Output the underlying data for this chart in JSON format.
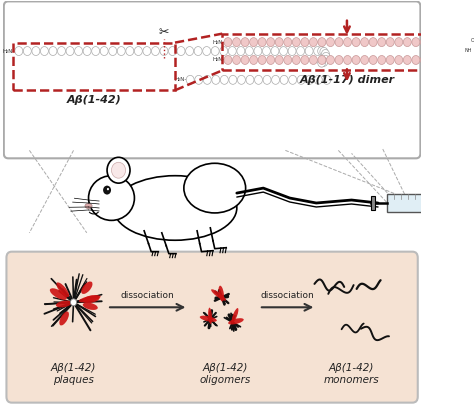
{
  "bg_color": "#ffffff",
  "top_box_bg": "#ffffff",
  "bottom_box_bg": "#f5e2d3",
  "red_color": "#b22222",
  "gray_circle_face": "#ffffff",
  "gray_circle_edge": "#aaaaaa",
  "pink_circle_face": "#f0c8c8",
  "pink_circle_edge": "#c89898",
  "label_ab42": "Aβ(1-42)",
  "label_ab17": "Aβ(1-17) dimer",
  "label_plaques": "Aβ(1-42)\nplaques",
  "label_oligomers": "Aβ(1-42)\noligomers",
  "label_monomers": "Aβ(1-42)\nmonomers",
  "dissociation": "dissociation"
}
